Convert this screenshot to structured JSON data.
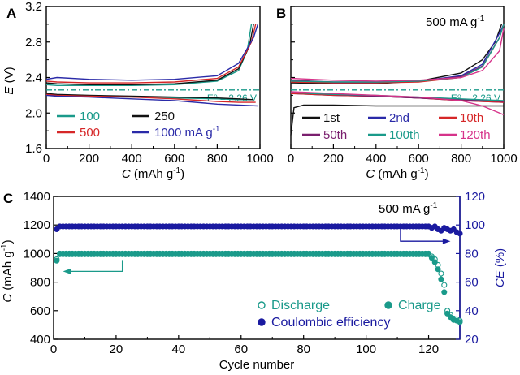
{
  "chart_data": [
    {
      "panel": "A",
      "type": "line",
      "xlabel": "C (mAh g-1)",
      "ylabel": "E (V)",
      "xlim": [
        0,
        1000
      ],
      "ylim": [
        1.6,
        3.2
      ],
      "xticks": [
        "0",
        "200",
        "400",
        "600",
        "800",
        "1000"
      ],
      "yticks": [
        "1.6",
        "2.0",
        "2.4",
        "2.8",
        "3.2"
      ],
      "reference_line": {
        "value": 2.26,
        "label": "E⁰ = 2.26 V",
        "color": "#1a9a8a"
      },
      "legend": [
        "100",
        "250",
        "500",
        "1000 mA g-1"
      ],
      "series": [
        {
          "name": "100",
          "color": "#1a9a8a",
          "discharge": [
            [
              0,
              2.22
            ],
            [
              50,
              2.2
            ],
            [
              200,
              2.19
            ],
            [
              400,
              2.18
            ],
            [
              600,
              2.17
            ],
            [
              800,
              2.16
            ],
            [
              900,
              2.15
            ],
            [
              960,
              2.15
            ]
          ],
          "charge": [
            [
              0,
              2.32
            ],
            [
              50,
              2.31
            ],
            [
              200,
              2.31
            ],
            [
              400,
              2.31
            ],
            [
              600,
              2.32
            ],
            [
              800,
              2.36
            ],
            [
              900,
              2.48
            ],
            [
              940,
              2.7
            ],
            [
              960,
              3.0
            ]
          ]
        },
        {
          "name": "250",
          "color": "#111111",
          "discharge": [
            [
              0,
              2.22
            ],
            [
              50,
              2.21
            ],
            [
              200,
              2.2
            ],
            [
              400,
              2.19
            ],
            [
              600,
              2.18
            ],
            [
              800,
              2.17
            ],
            [
              900,
              2.16
            ],
            [
              970,
              2.15
            ]
          ],
          "charge": [
            [
              0,
              2.34
            ],
            [
              50,
              2.33
            ],
            [
              200,
              2.32
            ],
            [
              400,
              2.32
            ],
            [
              600,
              2.33
            ],
            [
              800,
              2.37
            ],
            [
              900,
              2.5
            ],
            [
              950,
              2.75
            ],
            [
              970,
              3.0
            ]
          ]
        },
        {
          "name": "500",
          "color": "#d62728",
          "discharge": [
            [
              0,
              2.21
            ],
            [
              50,
              2.2
            ],
            [
              200,
              2.19
            ],
            [
              400,
              2.18
            ],
            [
              600,
              2.16
            ],
            [
              800,
              2.13
            ],
            [
              900,
              2.12
            ],
            [
              980,
              2.12
            ]
          ],
          "charge": [
            [
              0,
              2.36
            ],
            [
              50,
              2.35
            ],
            [
              200,
              2.34
            ],
            [
              400,
              2.34
            ],
            [
              600,
              2.35
            ],
            [
              800,
              2.39
            ],
            [
              900,
              2.52
            ],
            [
              960,
              2.8
            ],
            [
              980,
              3.0
            ]
          ]
        },
        {
          "name": "1000 mA g-1",
          "color": "#2a2aa8",
          "discharge": [
            [
              0,
              2.2
            ],
            [
              50,
              2.19
            ],
            [
              200,
              2.18
            ],
            [
              400,
              2.16
            ],
            [
              600,
              2.14
            ],
            [
              800,
              2.1
            ],
            [
              900,
              2.09
            ],
            [
              990,
              2.08
            ]
          ],
          "charge": [
            [
              0,
              2.38
            ],
            [
              50,
              2.4
            ],
            [
              200,
              2.38
            ],
            [
              400,
              2.37
            ],
            [
              600,
              2.38
            ],
            [
              800,
              2.42
            ],
            [
              900,
              2.56
            ],
            [
              970,
              2.85
            ],
            [
              990,
              3.0
            ]
          ]
        }
      ]
    },
    {
      "panel": "B",
      "type": "line",
      "title": "500 mA g-1",
      "xlabel": "C (mAh g-1)",
      "ylabel": "",
      "xlim": [
        0,
        1000
      ],
      "ylim": [
        1.6,
        3.2
      ],
      "xticks": [
        "0",
        "200",
        "400",
        "600",
        "800",
        "1000"
      ],
      "reference_line": {
        "value": 2.26,
        "label": "E⁰ = 2.26 V",
        "color": "#1a9a8a"
      },
      "legend": [
        "1st",
        "2nd",
        "10th",
        "50th",
        "100th",
        "120th"
      ],
      "series": [
        {
          "name": "1st",
          "color": "#111111",
          "discharge": [
            [
              0,
              1.75
            ],
            [
              15,
              2.06
            ],
            [
              60,
              2.09
            ],
            [
              200,
              2.09
            ],
            [
              400,
              2.08
            ],
            [
              600,
              2.08
            ],
            [
              800,
              2.08
            ],
            [
              1000,
              2.08
            ]
          ],
          "charge": [
            [
              0,
              2.34
            ],
            [
              200,
              2.33
            ],
            [
              400,
              2.33
            ],
            [
              600,
              2.36
            ],
            [
              800,
              2.45
            ],
            [
              900,
              2.6
            ],
            [
              960,
              2.8
            ],
            [
              990,
              3.0
            ]
          ]
        },
        {
          "name": "2nd",
          "color": "#2a2aa8",
          "discharge": [
            [
              0,
              2.22
            ],
            [
              200,
              2.2
            ],
            [
              400,
              2.19
            ],
            [
              600,
              2.17
            ],
            [
              800,
              2.14
            ],
            [
              1000,
              2.12
            ]
          ],
          "charge": [
            [
              0,
              2.36
            ],
            [
              200,
              2.34
            ],
            [
              400,
              2.34
            ],
            [
              600,
              2.36
            ],
            [
              800,
              2.42
            ],
            [
              900,
              2.55
            ],
            [
              980,
              2.9
            ],
            [
              1000,
              3.0
            ]
          ]
        },
        {
          "name": "10th",
          "color": "#d62728",
          "discharge": [
            [
              0,
              2.22
            ],
            [
              200,
              2.2
            ],
            [
              400,
              2.19
            ],
            [
              600,
              2.17
            ],
            [
              800,
              2.14
            ],
            [
              1000,
              2.12
            ]
          ],
          "charge": [
            [
              0,
              2.35
            ],
            [
              200,
              2.34
            ],
            [
              400,
              2.34
            ],
            [
              600,
              2.35
            ],
            [
              800,
              2.4
            ],
            [
              900,
              2.52
            ],
            [
              980,
              2.85
            ],
            [
              1000,
              3.0
            ]
          ]
        },
        {
          "name": "50th",
          "color": "#7a1f6e",
          "discharge": [
            [
              0,
              2.23
            ],
            [
              200,
              2.21
            ],
            [
              400,
              2.19
            ],
            [
              600,
              2.17
            ],
            [
              800,
              2.15
            ],
            [
              1000,
              2.13
            ]
          ],
          "charge": [
            [
              0,
              2.37
            ],
            [
              200,
              2.35
            ],
            [
              400,
              2.35
            ],
            [
              600,
              2.36
            ],
            [
              800,
              2.41
            ],
            [
              900,
              2.53
            ],
            [
              980,
              2.85
            ],
            [
              1000,
              3.0
            ]
          ]
        },
        {
          "name": "100th",
          "color": "#1a9a8a",
          "discharge": [
            [
              0,
              2.23
            ],
            [
              200,
              2.21
            ],
            [
              400,
              2.2
            ],
            [
              600,
              2.18
            ],
            [
              800,
              2.16
            ],
            [
              1000,
              2.14
            ]
          ],
          "charge": [
            [
              0,
              2.36
            ],
            [
              200,
              2.35
            ],
            [
              400,
              2.35
            ],
            [
              600,
              2.36
            ],
            [
              800,
              2.4
            ],
            [
              900,
              2.52
            ],
            [
              980,
              2.85
            ],
            [
              1000,
              3.0
            ]
          ]
        },
        {
          "name": "120th",
          "color": "#d6338a",
          "discharge": [
            [
              0,
              2.24
            ],
            [
              200,
              2.22
            ],
            [
              400,
              2.2
            ],
            [
              600,
              2.18
            ],
            [
              800,
              2.14
            ],
            [
              900,
              2.08
            ],
            [
              1000,
              1.98
            ]
          ],
          "charge": [
            [
              0,
              2.39
            ],
            [
              200,
              2.37
            ],
            [
              400,
              2.36
            ],
            [
              600,
              2.37
            ],
            [
              800,
              2.4
            ],
            [
              900,
              2.48
            ],
            [
              980,
              2.7
            ],
            [
              1000,
              2.95
            ]
          ]
        }
      ]
    },
    {
      "panel": "C",
      "type": "scatter",
      "title": "500 mA g-1",
      "xlabel": "Cycle number",
      "ylabel": "C (mAh g-1)",
      "y2label": "CE (%)",
      "xlim": [
        0,
        130
      ],
      "ylim": [
        400,
        1400
      ],
      "y2lim": [
        20,
        120
      ],
      "xticks": [
        "0",
        "20",
        "40",
        "60",
        "80",
        "100",
        "120"
      ],
      "yticks": [
        "400",
        "600",
        "800",
        "1000",
        "1200",
        "1400"
      ],
      "y2ticks": [
        "20",
        "40",
        "60",
        "80",
        "100",
        "120"
      ],
      "legend": [
        "Discharge",
        "Charge",
        "Coulombic efficiency"
      ],
      "colors": {
        "capacity": "#1a9a8a",
        "ce": "#1a1aa0"
      },
      "tail_discharge": [
        [
          121,
          980
        ],
        [
          122,
          960
        ],
        [
          123,
          920
        ],
        [
          124,
          860
        ],
        [
          125,
          780
        ],
        [
          126,
          600
        ],
        [
          127,
          570
        ],
        [
          128,
          545
        ],
        [
          129,
          540
        ],
        [
          130,
          530
        ]
      ],
      "tail_charge": [
        [
          121,
          970
        ],
        [
          122,
          940
        ],
        [
          123,
          890
        ],
        [
          124,
          820
        ],
        [
          125,
          730
        ],
        [
          126,
          580
        ],
        [
          127,
          555
        ],
        [
          128,
          535
        ],
        [
          129,
          530
        ],
        [
          130,
          520
        ]
      ],
      "tail_ce": [
        [
          121,
          98
        ],
        [
          122,
          99
        ],
        [
          123,
          97
        ],
        [
          124,
          96
        ],
        [
          125,
          98
        ],
        [
          126,
          97
        ],
        [
          127,
          96
        ],
        [
          128,
          97
        ],
        [
          129,
          95
        ],
        [
          130,
          94
        ]
      ]
    }
  ]
}
